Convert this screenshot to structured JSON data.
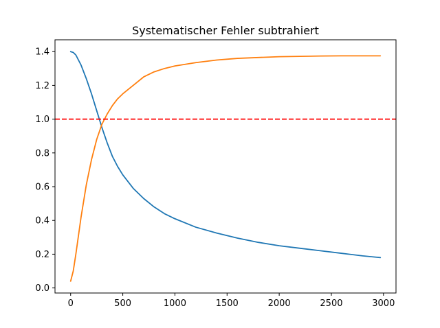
{
  "chart_data": {
    "type": "line",
    "title": "Systematischer Fehler subtrahiert",
    "xlabel": "",
    "ylabel": "",
    "xlim": [
      -150,
      3120
    ],
    "ylim": [
      -0.03,
      1.47
    ],
    "xticks": [
      0,
      500,
      1000,
      1500,
      2000,
      2500,
      3000
    ],
    "yticks": [
      0.0,
      0.2,
      0.4,
      0.6,
      0.8,
      1.0,
      1.2,
      1.4
    ],
    "ytick_labels": [
      "0.0",
      "0.2",
      "0.4",
      "0.6",
      "0.8",
      "1.0",
      "1.2",
      "1.4"
    ],
    "grid": false,
    "series": [
      {
        "color": "#1f77b4",
        "x": [
          0,
          25,
          50,
          75,
          100,
          150,
          200,
          250,
          300,
          350,
          400,
          450,
          500,
          600,
          700,
          800,
          900,
          1000,
          1200,
          1400,
          1600,
          1800,
          2000,
          2200,
          2400,
          2600,
          2800,
          2970
        ],
        "y": [
          1.4,
          1.395,
          1.38,
          1.35,
          1.32,
          1.24,
          1.15,
          1.05,
          0.95,
          0.86,
          0.78,
          0.72,
          0.67,
          0.59,
          0.53,
          0.48,
          0.44,
          0.41,
          0.36,
          0.325,
          0.295,
          0.27,
          0.25,
          0.235,
          0.22,
          0.205,
          0.19,
          0.18
        ]
      },
      {
        "color": "#ff7f0e",
        "x": [
          0,
          25,
          50,
          75,
          100,
          150,
          200,
          250,
          300,
          350,
          400,
          450,
          500,
          600,
          700,
          800,
          900,
          1000,
          1200,
          1400,
          1600,
          1800,
          2000,
          2200,
          2400,
          2600,
          2800,
          2970
        ],
        "y": [
          0.04,
          0.1,
          0.2,
          0.31,
          0.42,
          0.61,
          0.76,
          0.88,
          0.97,
          1.03,
          1.08,
          1.12,
          1.15,
          1.2,
          1.25,
          1.28,
          1.3,
          1.315,
          1.335,
          1.35,
          1.36,
          1.365,
          1.37,
          1.372,
          1.374,
          1.375,
          1.375,
          1.375
        ]
      }
    ],
    "reference_lines": [
      {
        "orientation": "horizontal",
        "y": 1.0,
        "color": "#ff0000",
        "style": "dashed"
      }
    ]
  }
}
